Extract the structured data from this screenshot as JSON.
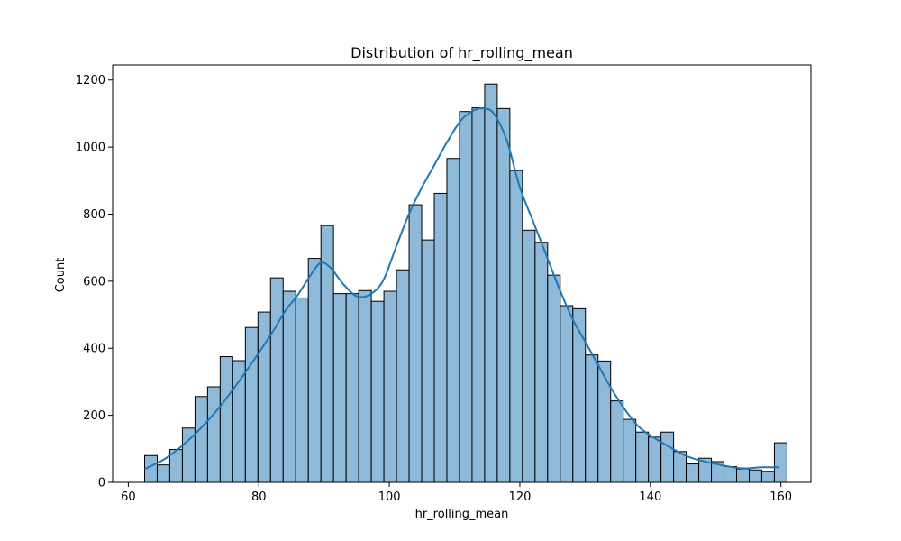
{
  "chart_data": {
    "type": "bar",
    "title": "Distribution of hr_rolling_mean",
    "xlabel": "hr_rolling_mean",
    "ylabel": "Count",
    "xlim": [
      57.6,
      164.6
    ],
    "ylim": [
      0,
      1245
    ],
    "x_ticks": [
      60,
      80,
      100,
      120,
      140,
      160
    ],
    "y_ticks": [
      0,
      200,
      400,
      600,
      800,
      1000,
      1200
    ],
    "bin_start": 62.5,
    "bin_width": 1.93,
    "values": [
      80,
      52,
      98,
      162,
      256,
      285,
      375,
      363,
      462,
      508,
      610,
      570,
      550,
      668,
      766,
      563,
      563,
      572,
      540,
      570,
      634,
      828,
      723,
      862,
      966,
      1106,
      1117,
      1188,
      1115,
      930,
      752,
      716,
      618,
      527,
      518,
      380,
      362,
      243,
      188,
      150,
      135,
      150,
      92,
      55,
      72,
      62,
      47,
      40,
      37,
      33,
      118
    ],
    "kde": {
      "name": "",
      "x": [
        62.5,
        66,
        70,
        74,
        78,
        82,
        84,
        86,
        88,
        89.5,
        91,
        93,
        95,
        97,
        99,
        101,
        103,
        105,
        107,
        109,
        111,
        113,
        114.5,
        116,
        118,
        120,
        122,
        124,
        126,
        128,
        130,
        132,
        134,
        136,
        138,
        140,
        143,
        146,
        150,
        154,
        157,
        159.8
      ],
      "y": [
        40,
        75,
        140,
        225,
        330,
        445,
        510,
        560,
        620,
        655,
        640,
        590,
        555,
        560,
        600,
        700,
        800,
        880,
        950,
        1020,
        1080,
        1110,
        1115,
        1100,
        1020,
        880,
        780,
        680,
        580,
        490,
        420,
        350,
        280,
        220,
        170,
        140,
        105,
        75,
        55,
        42,
        45,
        45
      ]
    },
    "colors": {
      "bar_fill": "#8fb9d9",
      "bar_edge": "#000000",
      "line": "#1f77b4"
    },
    "grid": false,
    "legend": false
  }
}
